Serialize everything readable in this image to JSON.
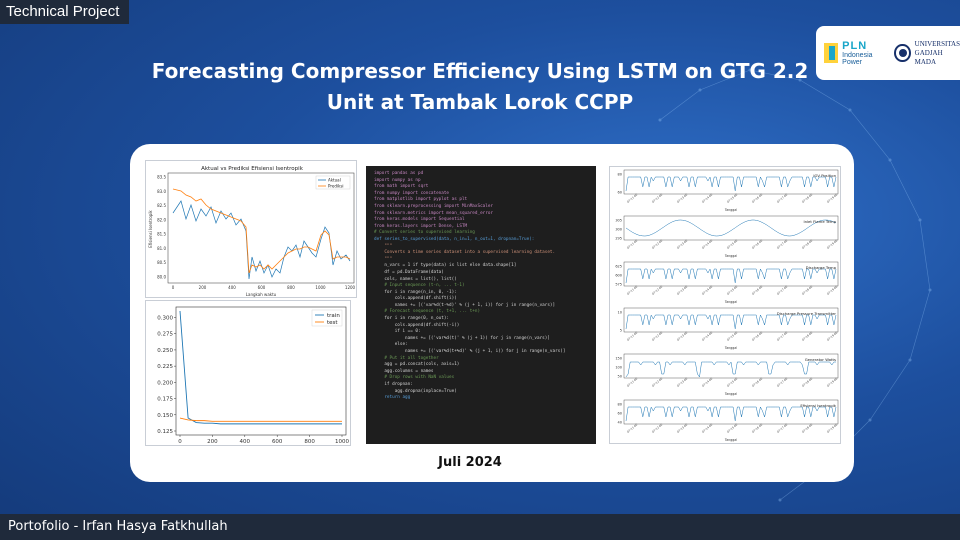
{
  "header": {
    "tag": "Technical Project",
    "title_line1": "Forecasting Compressor Efficiency Using LSTM on GTG 2.2",
    "title_line2": "Unit at Tambak Lorok CCPP",
    "date": "Juli 2024"
  },
  "logos": {
    "pln_name": "PLN",
    "pln_sub": "Indonesia Power",
    "ugm_line1": "UNIVERSITAS",
    "ugm_line2": "GADJAH MADA"
  },
  "footer": {
    "text": "Portofolio - Irfan Hasya Fatkhullah"
  },
  "colors": {
    "background": "#1d4f9e",
    "footer": "#1f2a3b",
    "actual": "#1f77b4",
    "predict": "#ff7f0e"
  },
  "panel_prediction": {
    "title": "Aktual vs Prediksi Efisiensi Isentropik",
    "legend": [
      "Aktual",
      "Prediksi"
    ],
    "xlabel": "Langkah waktu",
    "ylabel": "Efisiensi Isentropik",
    "yticks": [
      "83.5",
      "83.0",
      "82.5",
      "82.0",
      "81.5",
      "81.0",
      "80.5",
      "80.0"
    ],
    "xticks": [
      "0",
      "200",
      "400",
      "600",
      "800",
      "1000",
      "1200"
    ]
  },
  "chart_data": {
    "type": "line",
    "x": [
      0,
      50,
      100,
      150,
      200,
      250,
      300,
      350,
      400,
      450,
      500,
      550,
      600,
      650,
      700,
      750,
      800,
      850,
      900,
      950,
      1000
    ],
    "series": [
      {
        "name": "train",
        "values": [
          0.31,
          0.145,
          0.138,
          0.137,
          0.137,
          0.136,
          0.136,
          0.136,
          0.136,
          0.136,
          0.136,
          0.136,
          0.136,
          0.136,
          0.136,
          0.136,
          0.136,
          0.136,
          0.136,
          0.136,
          0.136
        ]
      },
      {
        "name": "test",
        "values": [
          0.145,
          0.142,
          0.141,
          0.141,
          0.14,
          0.14,
          0.14,
          0.14,
          0.14,
          0.14,
          0.14,
          0.14,
          0.14,
          0.14,
          0.14,
          0.14,
          0.14,
          0.14,
          0.14,
          0.14,
          0.14
        ]
      }
    ],
    "xlim": [
      0,
      1000
    ],
    "ylim": [
      0.125,
      0.31
    ],
    "yticks": [
      0.3,
      0.275,
      0.25,
      0.225,
      0.2,
      0.175,
      0.15,
      0.125
    ],
    "xticks": [
      0,
      200,
      400,
      600,
      800,
      1000
    ],
    "legend": "top-right",
    "grid": false
  },
  "code": [
    "import pandas as pd",
    "import numpy as np",
    "from math import sqrt",
    "from numpy import concatenate",
    "from matplotlib import pyplot as plt",
    "from sklearn.preprocessing import MinMaxScaler",
    "from sklearn.metrics import mean_squared_error",
    "from keras.models import Sequential",
    "from keras.layers import Dense, LSTM",
    "",
    "# Convert series to supervised learning",
    "def series_to_supervised(data, n_in=1, n_out=1, dropnan=True):",
    "    \"\"\"",
    "    Converts a time series dataset into a supervised learning dataset.",
    "    \"\"\"",
    "    n_vars = 1 if type(data) is list else data.shape[1]",
    "    df = pd.DataFrame(data)",
    "    cols, names = list(), list()",
    "",
    "    # Input sequence (t-n, ... t-1)",
    "    for i in range(n_in, 0, -1):",
    "        cols.append(df.shift(i))",
    "        names += [('var%d(t-%d)' % (j + 1, i)) for j in range(n_vars)]",
    "",
    "    # Forecast sequence (t, t+1, ... t+n)",
    "    for i in range(0, n_out):",
    "        cols.append(df.shift(-i))",
    "        if i == 0:",
    "            names += [('var%d(t)' % (j + 1)) for j in range(n_vars)]",
    "        else:",
    "            names += [('var%d(t+%d)' % (j + 1, i)) for j in range(n_vars)]",
    "",
    "    # Put it all together",
    "    agg = pd.concat(cols, axis=1)",
    "    agg.columns = names",
    "",
    "    # Drop rows with NaN values",
    "    if dropnan:",
    "        agg.dropna(inplace=True)",
    "    return agg"
  ],
  "sensor_plots": [
    {
      "label": "IGV Position",
      "yticks": [
        "80",
        "60"
      ]
    },
    {
      "label": "Inlet Flame Temp",
      "yticks": [
        "305",
        "300",
        "295"
      ]
    },
    {
      "label": "Discharge Temp",
      "yticks": [
        "625",
        "600",
        "575"
      ]
    },
    {
      "label": "Discharge Pressure Transmitter",
      "yticks": [
        "10",
        "5"
      ]
    },
    {
      "label": "Generator Watts",
      "yticks": [
        "150",
        "100",
        "50"
      ]
    },
    {
      "label": "Efisiensi Isentropik",
      "yticks": [
        "80",
        "60",
        "40"
      ]
    }
  ],
  "sensor_xlabel": "Tanggal",
  "sensor_xticks": [
    "07-11 00",
    "07-12 00",
    "07-13 00",
    "07-14 00",
    "07-15 00",
    "07-16 00",
    "07-17 00",
    "07-18 00",
    "07-19 00"
  ]
}
